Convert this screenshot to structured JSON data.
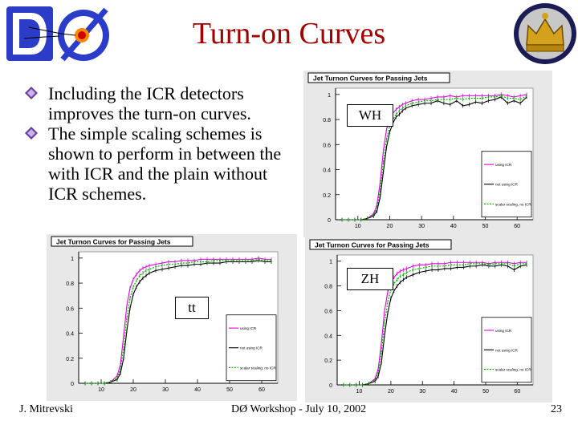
{
  "slide": {
    "title": "Turn-on Curves",
    "bullets": [
      "Including the ICR detectors improves the turn-on curves.",
      "The simple scaling schemes is shown to perform in between the with ICR and the plain without ICR schemes."
    ],
    "footer_left": "J. Mitrevski",
    "footer_center": "DØ Workshop - July 10, 2002",
    "footer_right": "23",
    "colors": {
      "title": "#a00000",
      "bullet": "#6a3fa0",
      "with_icr": "#e000e0",
      "without_icr": "#000000",
      "scaling": "#00a000"
    }
  },
  "chart_data": [
    {
      "type": "line",
      "title": "Jet Turnon Curves for Passing Jets",
      "tag": "WH",
      "x": [
        5,
        7,
        9,
        11,
        13,
        15,
        16,
        17,
        18,
        19,
        20,
        21,
        22,
        23,
        24,
        25,
        27,
        29,
        31,
        33,
        35,
        37,
        39,
        41,
        43,
        45,
        47,
        49,
        51,
        53,
        55,
        57,
        59,
        61,
        63
      ],
      "xticks": [
        10,
        20,
        30,
        40,
        50,
        60
      ],
      "yticks": [
        0,
        0.2,
        0.4,
        0.6,
        0.8,
        1
      ],
      "xlim": [
        3,
        65
      ],
      "ylim": [
        0,
        1.05
      ],
      "legend": [
        "using ICR",
        "not using ICR",
        "scalar scaling, no ICR"
      ],
      "series": [
        {
          "name": "using ICR",
          "values": [
            0,
            0,
            0,
            0,
            0.01,
            0.05,
            0.12,
            0.3,
            0.55,
            0.72,
            0.8,
            0.85,
            0.88,
            0.9,
            0.92,
            0.93,
            0.95,
            0.96,
            0.96,
            0.97,
            0.98,
            0.98,
            0.99,
            0.98,
            0.99,
            0.99,
            0.99,
            0.99,
            0.99,
            0.99,
            1.0,
            0.99,
            0.98,
            0.99,
            1.0
          ]
        },
        {
          "name": "not using ICR",
          "values": [
            0,
            0,
            0,
            0,
            0.01,
            0.03,
            0.07,
            0.18,
            0.38,
            0.58,
            0.7,
            0.77,
            0.82,
            0.84,
            0.87,
            0.89,
            0.91,
            0.92,
            0.93,
            0.93,
            0.95,
            0.93,
            0.92,
            0.95,
            0.91,
            0.92,
            0.94,
            0.93,
            0.95,
            0.96,
            0.98,
            0.93,
            0.95,
            0.93,
            0.98
          ]
        },
        {
          "name": "scalar scaling, no ICR",
          "values": [
            0,
            0,
            0,
            0,
            0.01,
            0.04,
            0.09,
            0.23,
            0.46,
            0.64,
            0.75,
            0.8,
            0.84,
            0.87,
            0.89,
            0.91,
            0.93,
            0.94,
            0.95,
            0.95,
            0.96,
            0.96,
            0.96,
            0.97,
            0.96,
            0.97,
            0.97,
            0.97,
            0.98,
            0.98,
            0.99,
            0.97,
            0.97,
            0.96,
            0.99
          ]
        }
      ]
    },
    {
      "type": "line",
      "title": "Jet Turnon Curves for Passing Jets",
      "tag": "tt",
      "x": [
        5,
        7,
        9,
        11,
        13,
        15,
        16,
        17,
        18,
        19,
        20,
        21,
        22,
        23,
        24,
        25,
        27,
        29,
        31,
        33,
        35,
        37,
        39,
        41,
        43,
        45,
        47,
        49,
        51,
        53,
        55,
        57,
        59,
        61,
        63
      ],
      "xticks": [
        10,
        20,
        30,
        40,
        50,
        60
      ],
      "yticks": [
        0,
        0.2,
        0.4,
        0.6,
        0.8,
        1
      ],
      "xlim": [
        3,
        65
      ],
      "ylim": [
        0,
        1.05
      ],
      "legend": [
        "using ICR",
        "not using ICR",
        "scalar scaling, no ICR"
      ],
      "series": [
        {
          "name": "using ICR",
          "values": [
            0,
            0,
            0,
            0,
            0.01,
            0.06,
            0.15,
            0.38,
            0.62,
            0.76,
            0.83,
            0.87,
            0.9,
            0.92,
            0.93,
            0.94,
            0.95,
            0.96,
            0.97,
            0.97,
            0.98,
            0.98,
            0.98,
            0.99,
            0.99,
            0.99,
            0.99,
            0.99,
            0.99,
            0.99,
            0.99,
            0.99,
            1.0,
            0.99,
            0.99
          ]
        },
        {
          "name": "not using ICR",
          "values": [
            0,
            0,
            0,
            0,
            0.01,
            0.03,
            0.08,
            0.2,
            0.42,
            0.6,
            0.71,
            0.77,
            0.81,
            0.84,
            0.86,
            0.88,
            0.9,
            0.91,
            0.92,
            0.93,
            0.94,
            0.94,
            0.95,
            0.95,
            0.96,
            0.96,
            0.96,
            0.97,
            0.97,
            0.97,
            0.97,
            0.97,
            0.98,
            0.97,
            0.97
          ]
        },
        {
          "name": "scalar scaling, no ICR",
          "values": [
            0,
            0,
            0,
            0,
            0.01,
            0.04,
            0.11,
            0.28,
            0.52,
            0.68,
            0.77,
            0.82,
            0.86,
            0.88,
            0.9,
            0.91,
            0.93,
            0.94,
            0.95,
            0.95,
            0.96,
            0.96,
            0.97,
            0.97,
            0.97,
            0.98,
            0.98,
            0.98,
            0.98,
            0.98,
            0.98,
            0.98,
            0.99,
            0.98,
            0.98
          ]
        }
      ]
    },
    {
      "type": "line",
      "title": "Jet Turnon Curves for Passing Jets",
      "tag": "ZH",
      "x": [
        5,
        7,
        9,
        11,
        13,
        15,
        16,
        17,
        18,
        19,
        20,
        21,
        22,
        23,
        24,
        25,
        27,
        29,
        31,
        33,
        35,
        37,
        39,
        41,
        43,
        45,
        47,
        49,
        51,
        53,
        55,
        57,
        59,
        61,
        63
      ],
      "xticks": [
        10,
        20,
        30,
        40,
        50,
        60
      ],
      "yticks": [
        0,
        0.2,
        0.4,
        0.6,
        0.8,
        1
      ],
      "xlim": [
        3,
        65
      ],
      "ylim": [
        0,
        1.05
      ],
      "legend": [
        "using ICR",
        "not using ICR",
        "scalar scaling, no ICR"
      ],
      "series": [
        {
          "name": "using ICR",
          "values": [
            0,
            0,
            0,
            0,
            0.01,
            0.05,
            0.13,
            0.34,
            0.6,
            0.75,
            0.83,
            0.87,
            0.9,
            0.92,
            0.93,
            0.94,
            0.96,
            0.97,
            0.97,
            0.98,
            0.98,
            0.98,
            0.99,
            0.99,
            0.99,
            0.99,
            0.99,
            0.99,
            0.98,
            0.99,
            0.99,
            0.99,
            0.98,
            0.99,
            0.99
          ]
        },
        {
          "name": "not using ICR",
          "values": [
            0,
            0,
            0,
            0,
            0.01,
            0.03,
            0.07,
            0.18,
            0.4,
            0.58,
            0.7,
            0.76,
            0.8,
            0.83,
            0.85,
            0.87,
            0.89,
            0.91,
            0.92,
            0.93,
            0.93,
            0.94,
            0.94,
            0.95,
            0.95,
            0.96,
            0.96,
            0.97,
            0.96,
            0.96,
            0.97,
            0.96,
            0.93,
            0.96,
            0.97
          ]
        },
        {
          "name": "scalar scaling, no ICR",
          "values": [
            0,
            0,
            0,
            0,
            0.01,
            0.04,
            0.1,
            0.26,
            0.5,
            0.67,
            0.77,
            0.82,
            0.85,
            0.88,
            0.89,
            0.91,
            0.93,
            0.94,
            0.95,
            0.96,
            0.96,
            0.96,
            0.97,
            0.97,
            0.97,
            0.98,
            0.98,
            0.98,
            0.97,
            0.98,
            0.98,
            0.98,
            0.96,
            0.98,
            0.98
          ]
        }
      ]
    }
  ]
}
